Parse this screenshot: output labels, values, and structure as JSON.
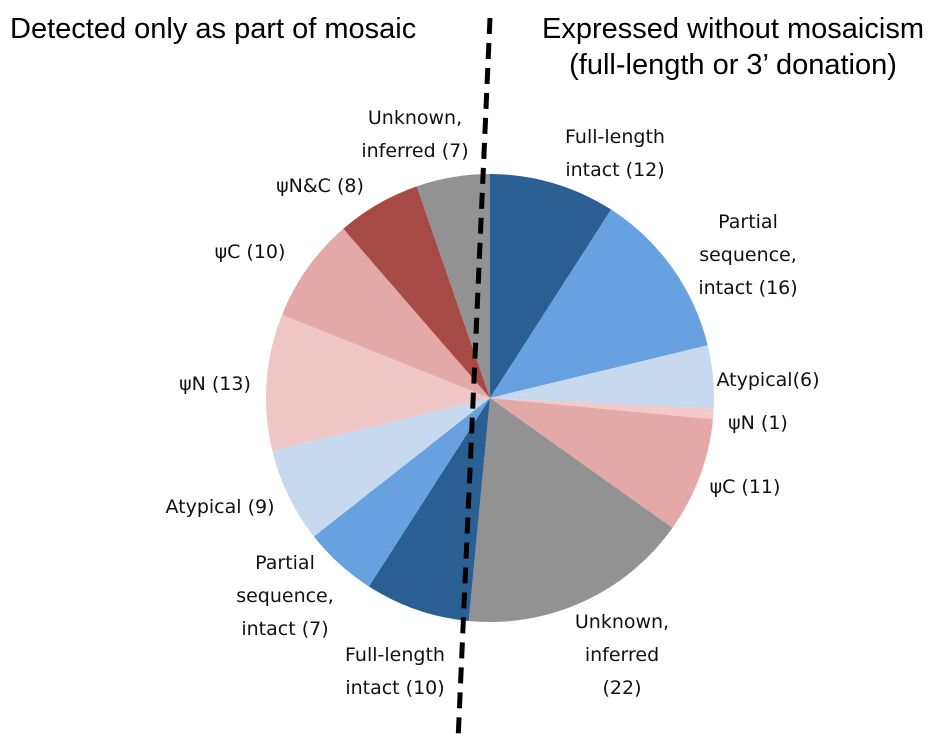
{
  "chart_data": {
    "type": "pie",
    "titles": [
      "Detected only as part of mosaic",
      "Expressed without mosaicism",
      "(full-length or 3’ donation)"
    ],
    "categories": [
      [
        "Full-length",
        "intact (12)"
      ],
      [
        "Partial",
        "sequence,",
        "intact (16)"
      ],
      [
        "Atypical(6)"
      ],
      [
        "ψN (1)"
      ],
      [
        "ψC (11)"
      ],
      [
        "Unknown,",
        "inferred",
        "(22)"
      ],
      [
        "Full-length",
        "intact (10)"
      ],
      [
        "Partial",
        "sequence,",
        "intact (7)"
      ],
      [
        "Atypical (9)"
      ],
      [
        "ψN (13)"
      ],
      [
        "ψC (10)"
      ],
      [
        "ψN&C (8)"
      ],
      [
        "Unknown,",
        "inferred (7)"
      ]
    ],
    "values": [
      12,
      16,
      6,
      1,
      11,
      22,
      10,
      7,
      9,
      13,
      10,
      8,
      7
    ],
    "colors": [
      "#2a5f93",
      "#67a1df",
      "#c6d9ee",
      "#f3c9c9",
      "#e4a8a7",
      "#929292",
      "#2a5f93",
      "#67a1df",
      "#c6d9ee",
      "#efc6c6",
      "#e4a8a7",
      "#a74944",
      "#929292"
    ]
  }
}
